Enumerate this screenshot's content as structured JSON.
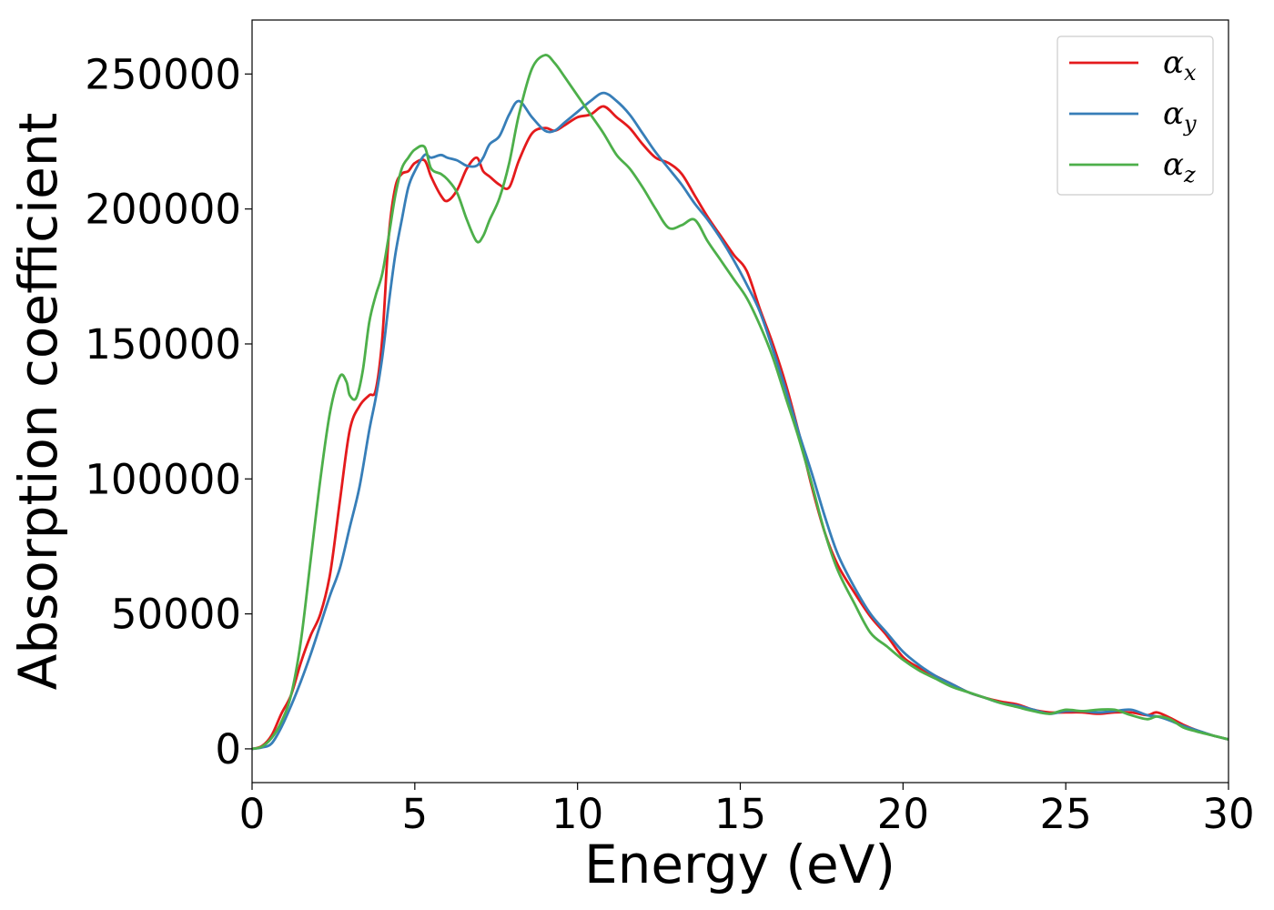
{
  "chart_data": {
    "type": "line",
    "xlabel": "Energy (eV)",
    "ylabel": "Absorption coefficient",
    "xlim": [
      0,
      30
    ],
    "ylim": [
      -12500,
      270000
    ],
    "xticks": [
      0,
      5,
      10,
      15,
      20,
      25,
      30
    ],
    "yticks": [
      0,
      50000,
      100000,
      150000,
      200000,
      250000
    ],
    "grid": false,
    "legend_position": "top-right",
    "series": [
      {
        "name": "α",
        "subscript": "x",
        "color": "#e41a1c",
        "x": [
          0,
          0.3,
          0.6,
          0.9,
          1.2,
          1.5,
          1.8,
          2.1,
          2.4,
          2.7,
          3.0,
          3.3,
          3.6,
          3.8,
          4.0,
          4.2,
          4.4,
          4.6,
          4.8,
          5.0,
          5.3,
          5.5,
          5.8,
          6.0,
          6.3,
          6.6,
          6.9,
          7.1,
          7.3,
          7.6,
          7.9,
          8.2,
          8.6,
          9.0,
          9.3,
          9.6,
          10.0,
          10.4,
          10.8,
          11.2,
          11.6,
          12.0,
          12.4,
          12.8,
          13.2,
          13.6,
          14.0,
          14.4,
          14.8,
          15.2,
          15.6,
          16.0,
          16.4,
          16.8,
          17.2,
          17.6,
          18.0,
          18.5,
          19.0,
          19.5,
          20.0,
          20.5,
          21.0,
          21.5,
          22.0,
          22.5,
          23.0,
          23.5,
          24.0,
          24.5,
          25.0,
          25.5,
          26.0,
          26.5,
          27.0,
          27.5,
          27.8,
          28.2,
          28.6,
          29.0,
          29.5,
          30.0
        ],
        "y": [
          0,
          1000,
          5000,
          13000,
          20000,
          32000,
          42000,
          50000,
          65000,
          92000,
          118000,
          127000,
          131000,
          133000,
          152000,
          190000,
          208000,
          213000,
          214000,
          217000,
          218000,
          212000,
          205000,
          203000,
          207000,
          215000,
          219000,
          214000,
          212000,
          209000,
          208000,
          218000,
          228000,
          230000,
          229000,
          231000,
          234000,
          235000,
          238000,
          234000,
          230000,
          224000,
          219000,
          217000,
          213000,
          205000,
          197000,
          190000,
          183000,
          177000,
          163000,
          150000,
          135000,
          117000,
          97000,
          80000,
          68000,
          58000,
          49000,
          42000,
          34000,
          30000,
          27000,
          24000,
          21000,
          19000,
          17500,
          16500,
          14500,
          13500,
          13500,
          13500,
          13000,
          13500,
          13500,
          12500,
          13500,
          11500,
          9000,
          7000,
          5000,
          3500
        ]
      },
      {
        "name": "α",
        "subscript": "y",
        "color": "#377eb8",
        "x": [
          0,
          0.3,
          0.6,
          0.9,
          1.2,
          1.5,
          1.8,
          2.1,
          2.4,
          2.7,
          3.0,
          3.3,
          3.6,
          3.8,
          4.0,
          4.2,
          4.4,
          4.6,
          4.8,
          5.0,
          5.3,
          5.5,
          5.8,
          6.0,
          6.3,
          6.6,
          6.9,
          7.1,
          7.3,
          7.6,
          7.9,
          8.2,
          8.6,
          9.0,
          9.3,
          9.6,
          10.0,
          10.4,
          10.8,
          11.2,
          11.6,
          12.0,
          12.4,
          12.8,
          13.2,
          13.6,
          14.0,
          14.4,
          14.8,
          15.2,
          15.6,
          16.0,
          16.4,
          16.8,
          17.2,
          17.6,
          18.0,
          18.5,
          19.0,
          19.5,
          20.0,
          20.5,
          21.0,
          21.5,
          22.0,
          22.5,
          23.0,
          23.5,
          24.0,
          24.5,
          25.0,
          25.5,
          26.0,
          26.5,
          27.0,
          27.5,
          27.8,
          28.2,
          28.6,
          29.0,
          29.5,
          30.0
        ],
        "y": [
          0,
          500,
          2000,
          8000,
          16000,
          25000,
          35000,
          46000,
          57000,
          67000,
          82000,
          97000,
          118000,
          130000,
          145000,
          165000,
          183000,
          196000,
          208000,
          214000,
          220000,
          219000,
          220000,
          219000,
          218000,
          216000,
          216000,
          219000,
          224000,
          227000,
          235000,
          240000,
          234000,
          229000,
          229000,
          232000,
          236000,
          240000,
          243000,
          240000,
          235000,
          228000,
          221000,
          215000,
          209000,
          202000,
          196000,
          189000,
          181000,
          172000,
          162000,
          148000,
          133000,
          117000,
          102000,
          86000,
          72000,
          60000,
          50000,
          43000,
          36000,
          31000,
          27000,
          24000,
          21000,
          19000,
          17000,
          16000,
          14500,
          13000,
          14000,
          14000,
          13500,
          14000,
          14500,
          12500,
          12000,
          10500,
          8500,
          7000,
          5000,
          3500
        ]
      },
      {
        "name": "α",
        "subscript": "z",
        "color": "#4daf4a",
        "x": [
          0,
          0.3,
          0.6,
          0.9,
          1.2,
          1.5,
          1.8,
          2.1,
          2.4,
          2.7,
          2.9,
          3.0,
          3.2,
          3.4,
          3.6,
          3.8,
          4.0,
          4.2,
          4.4,
          4.6,
          4.8,
          5.0,
          5.3,
          5.5,
          5.8,
          6.0,
          6.3,
          6.6,
          6.9,
          7.1,
          7.3,
          7.6,
          7.9,
          8.2,
          8.6,
          9.0,
          9.3,
          9.6,
          10.0,
          10.4,
          10.8,
          11.2,
          11.6,
          12.0,
          12.4,
          12.8,
          13.2,
          13.6,
          14.0,
          14.4,
          14.8,
          15.2,
          15.6,
          16.0,
          16.4,
          16.8,
          17.2,
          17.6,
          18.0,
          18.5,
          19.0,
          19.5,
          20.0,
          20.5,
          21.0,
          21.5,
          22.0,
          22.5,
          23.0,
          23.5,
          24.0,
          24.5,
          25.0,
          25.5,
          26.0,
          26.5,
          27.0,
          27.5,
          27.8,
          28.2,
          28.6,
          29.0,
          29.5,
          30.0
        ],
        "y": [
          0,
          800,
          4000,
          10000,
          20000,
          40000,
          70000,
          100000,
          125000,
          138000,
          136000,
          131000,
          130000,
          140000,
          158000,
          168000,
          176000,
          190000,
          205000,
          215000,
          219000,
          222000,
          223000,
          215000,
          213000,
          211000,
          206000,
          196000,
          188000,
          190000,
          196000,
          204000,
          217000,
          235000,
          252000,
          257000,
          254000,
          249000,
          242000,
          235000,
          228000,
          220000,
          215000,
          208000,
          200000,
          193000,
          194000,
          196000,
          188000,
          181000,
          174000,
          167000,
          157000,
          145000,
          130000,
          115000,
          98000,
          80000,
          66000,
          54000,
          43000,
          38000,
          33000,
          29000,
          26000,
          23000,
          21000,
          19000,
          17000,
          15500,
          14000,
          13000,
          14500,
          14000,
          14500,
          14500,
          12500,
          11000,
          12000,
          11000,
          8000,
          6500,
          5000,
          3500
        ]
      }
    ]
  }
}
